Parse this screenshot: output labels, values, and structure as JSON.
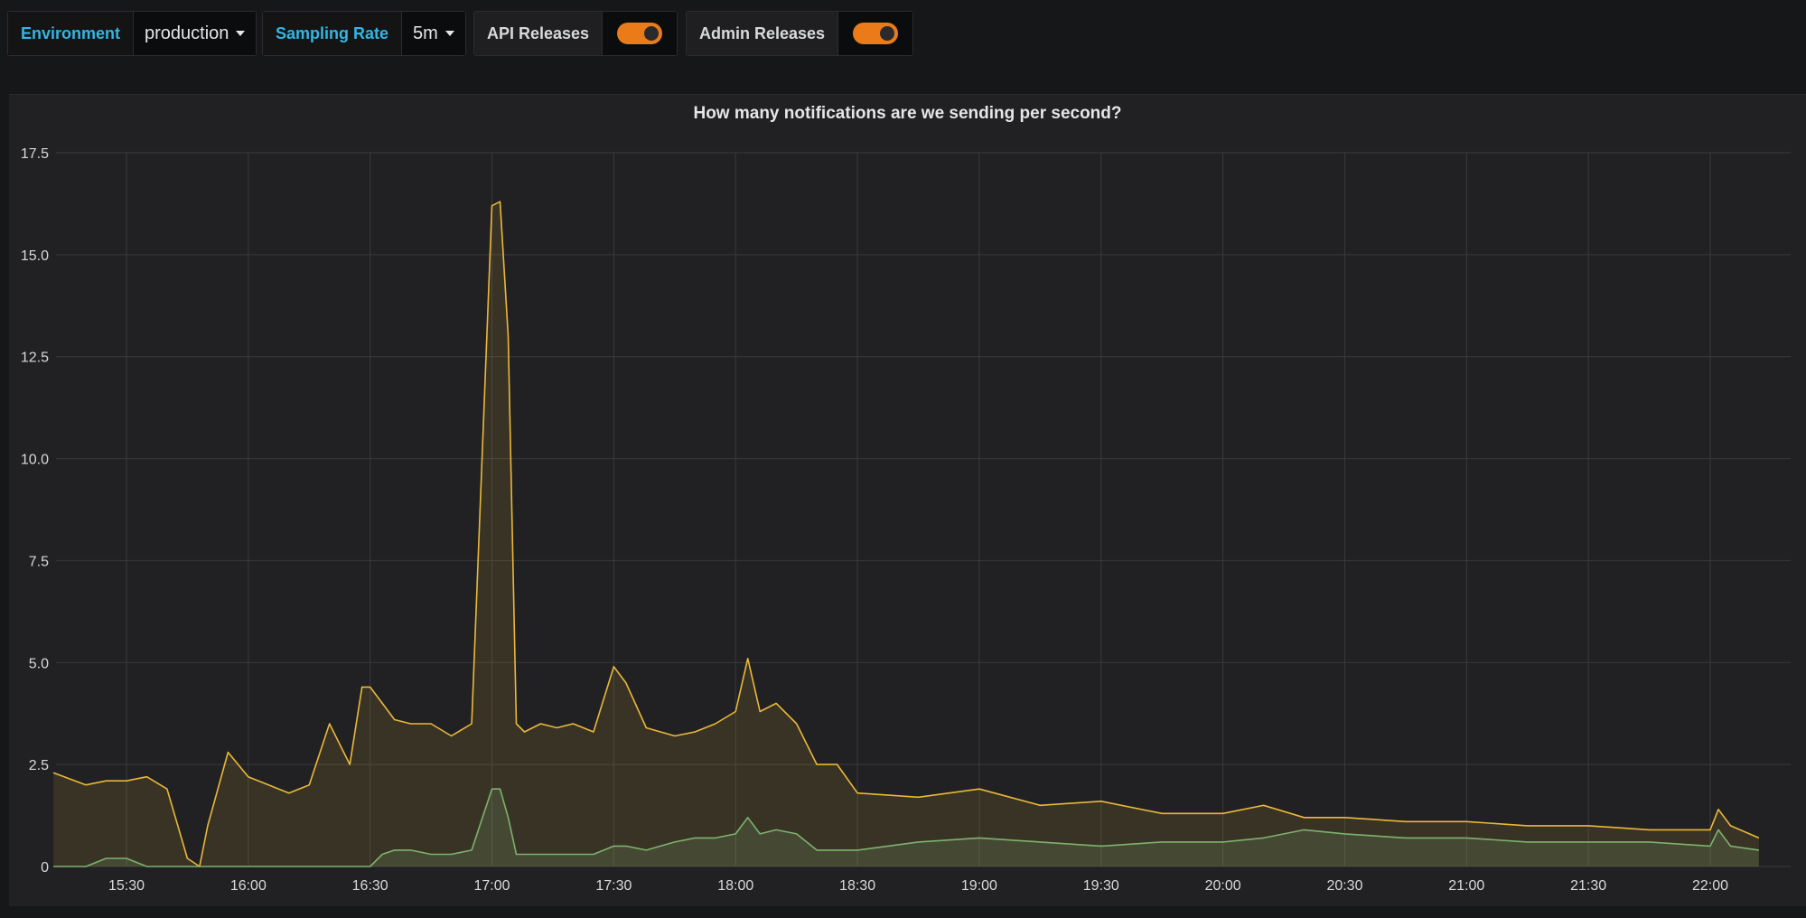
{
  "variables": {
    "environment": {
      "label": "Environment",
      "value": "production"
    },
    "sampling_rate": {
      "label": "Sampling Rate",
      "value": "5m"
    },
    "api_releases": {
      "label": "API Releases",
      "enabled": true
    },
    "admin_releases": {
      "label": "Admin Releases",
      "enabled": true
    }
  },
  "colors": {
    "background": "#161719",
    "panel": "#212124",
    "accent_label": "#33b5e5",
    "toggle_on": "#eb7b18",
    "series_yellow": "#eab839",
    "series_green": "#7eb26d",
    "grid": "#3a3a3e"
  },
  "panel": {
    "title": "How many notifications are we sending per second?"
  },
  "chart_data": {
    "type": "area",
    "title": "How many notifications are we sending per second?",
    "x_unit": "time (HH:MM)",
    "x_ticks": [
      "15:30",
      "16:00",
      "16:30",
      "17:00",
      "17:30",
      "18:00",
      "18:30",
      "19:00",
      "19:30",
      "20:00",
      "20:30",
      "21:00",
      "21:30",
      "22:00"
    ],
    "y_ticks": [
      "0",
      "2.5",
      "5.0",
      "7.5",
      "10.0",
      "12.5",
      "15.0",
      "17.5"
    ],
    "ylim": [
      0,
      17.5
    ],
    "grid": true,
    "x": [
      "15:12",
      "15:20",
      "15:25",
      "15:30",
      "15:35",
      "15:40",
      "15:45",
      "15:48",
      "15:50",
      "15:55",
      "16:00",
      "16:05",
      "16:10",
      "16:15",
      "16:20",
      "16:25",
      "16:28",
      "16:30",
      "16:33",
      "16:36",
      "16:40",
      "16:45",
      "16:50",
      "16:55",
      "17:00",
      "17:02",
      "17:04",
      "17:06",
      "17:08",
      "17:12",
      "17:16",
      "17:20",
      "17:25",
      "17:30",
      "17:33",
      "17:38",
      "17:45",
      "17:50",
      "17:55",
      "18:00",
      "18:03",
      "18:06",
      "18:10",
      "18:15",
      "18:20",
      "18:25",
      "18:30",
      "18:45",
      "19:00",
      "19:15",
      "19:30",
      "19:45",
      "20:00",
      "20:10",
      "20:20",
      "20:30",
      "20:45",
      "21:00",
      "21:15",
      "21:30",
      "21:45",
      "22:00",
      "22:02",
      "22:05",
      "22:12"
    ],
    "series": [
      {
        "values": [
          2.3,
          2.0,
          2.1,
          2.1,
          2.2,
          1.9,
          0.2,
          0.0,
          1.0,
          2.8,
          2.2,
          2.0,
          1.8,
          2.0,
          3.5,
          2.5,
          4.4,
          4.4,
          4.0,
          3.6,
          3.5,
          3.5,
          3.2,
          3.5,
          16.2,
          16.3,
          13.0,
          3.5,
          3.3,
          3.5,
          3.4,
          3.5,
          3.3,
          4.9,
          4.5,
          3.4,
          3.2,
          3.3,
          3.5,
          3.8,
          5.1,
          3.8,
          4.0,
          3.5,
          2.5,
          2.5,
          1.8,
          1.7,
          1.9,
          1.5,
          1.6,
          1.3,
          1.3,
          1.5,
          1.2,
          1.2,
          1.1,
          1.1,
          1.0,
          1.0,
          0.9,
          0.9,
          1.4,
          1.0,
          0.7
        ]
      },
      {
        "values": [
          0.0,
          0.0,
          0.2,
          0.2,
          0.0,
          0.0,
          0.0,
          0.0,
          0.0,
          0.0,
          0.0,
          0.0,
          0.0,
          0.0,
          0.0,
          0.0,
          0.0,
          0.0,
          0.3,
          0.4,
          0.4,
          0.3,
          0.3,
          0.4,
          1.9,
          1.9,
          1.2,
          0.3,
          0.3,
          0.3,
          0.3,
          0.3,
          0.3,
          0.5,
          0.5,
          0.4,
          0.6,
          0.7,
          0.7,
          0.8,
          1.2,
          0.8,
          0.9,
          0.8,
          0.4,
          0.4,
          0.4,
          0.6,
          0.7,
          0.6,
          0.5,
          0.6,
          0.6,
          0.7,
          0.9,
          0.8,
          0.7,
          0.7,
          0.6,
          0.6,
          0.6,
          0.5,
          0.9,
          0.5,
          0.4
        ]
      }
    ]
  }
}
